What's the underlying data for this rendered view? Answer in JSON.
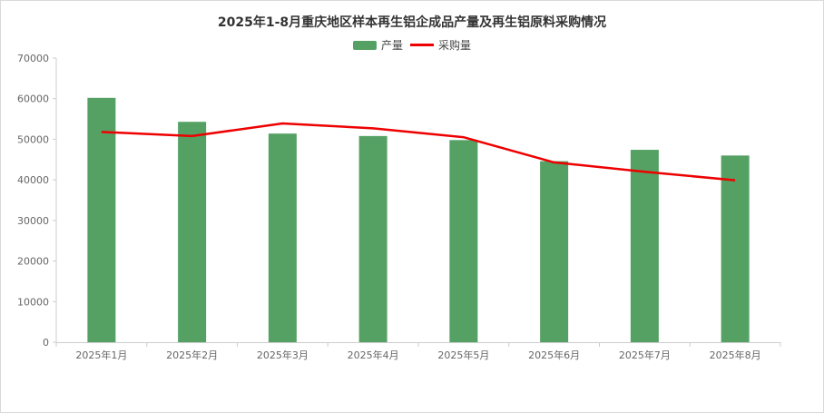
{
  "chart_data": {
    "type": "bar",
    "title": "2025年1-8月重庆地区样本再生铝企成品产量及再生铝原料采购情况",
    "categories": [
      "2025年1月",
      "2025年2月",
      "2025年3月",
      "2025年4月",
      "2025年5月",
      "2025年6月",
      "2025年7月",
      "2025年8月"
    ],
    "series": [
      {
        "name": "产量",
        "type": "bar",
        "color": "#55a164",
        "values": [
          60200,
          54300,
          51400,
          50800,
          49800,
          44600,
          47400,
          46000
        ]
      },
      {
        "name": "采购量",
        "type": "line",
        "color": "#ee0000",
        "values": [
          51800,
          50800,
          53900,
          52700,
          50500,
          44300,
          42000,
          39900
        ]
      }
    ],
    "ylim": [
      0,
      70000
    ],
    "yticks": [
      "0",
      "10000",
      "20000",
      "30000",
      "40000",
      "50000",
      "60000",
      "70000"
    ],
    "grid": false,
    "legend_position": "top-center"
  }
}
